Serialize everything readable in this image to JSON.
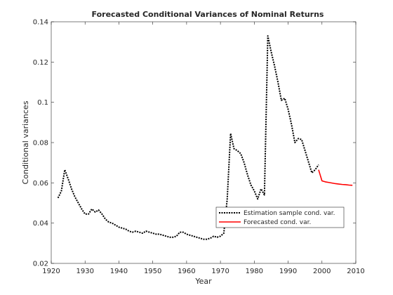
{
  "chart_data": {
    "type": "line",
    "title": "Forecasted Conditional Variances of Nominal Returns",
    "xlabel": "Year",
    "ylabel": "Conditional variances",
    "xlim": [
      1920,
      2010
    ],
    "ylim": [
      0.02,
      0.14
    ],
    "x_ticks": [
      1920,
      1930,
      1940,
      1950,
      1960,
      1970,
      1980,
      1990,
      2000,
      2010
    ],
    "y_ticks": [
      0.02,
      0.04,
      0.06,
      0.08,
      0.1,
      0.12,
      0.14
    ],
    "y_tick_labels": [
      "0.02",
      "0.04",
      "0.06",
      "0.08",
      "0.1",
      "0.12",
      "0.14"
    ],
    "grid": false,
    "legend_position": "lower-right",
    "series": [
      {
        "name": "Estimation sample cond. var.",
        "color": "#000000",
        "style": "dotted",
        "x": [
          1922,
          1923,
          1924,
          1925,
          1926,
          1927,
          1928,
          1929,
          1930,
          1931,
          1932,
          1933,
          1934,
          1935,
          1936,
          1937,
          1938,
          1939,
          1940,
          1941,
          1942,
          1943,
          1944,
          1945,
          1946,
          1947,
          1948,
          1949,
          1950,
          1951,
          1952,
          1953,
          1954,
          1955,
          1956,
          1957,
          1958,
          1959,
          1960,
          1961,
          1962,
          1963,
          1964,
          1965,
          1966,
          1967,
          1968,
          1969,
          1970,
          1971,
          1972,
          1973,
          1974,
          1975,
          1976,
          1977,
          1978,
          1979,
          1980,
          1981,
          1982,
          1983,
          1984,
          1985,
          1986,
          1987,
          1988,
          1989,
          1990,
          1991,
          1992,
          1993,
          1994,
          1995,
          1996,
          1997,
          1998,
          1999
        ],
        "y": [
          0.0525,
          0.056,
          0.0665,
          0.062,
          0.057,
          0.053,
          0.05,
          0.047,
          0.0445,
          0.0445,
          0.047,
          0.0455,
          0.0465,
          0.0445,
          0.042,
          0.0405,
          0.04,
          0.039,
          0.038,
          0.0375,
          0.037,
          0.036,
          0.0355,
          0.036,
          0.0355,
          0.035,
          0.036,
          0.0355,
          0.035,
          0.0345,
          0.0345,
          0.034,
          0.0335,
          0.033,
          0.033,
          0.0335,
          0.0355,
          0.0355,
          0.0345,
          0.034,
          0.0335,
          0.033,
          0.0325,
          0.032,
          0.032,
          0.0325,
          0.0335,
          0.033,
          0.0335,
          0.035,
          0.052,
          0.0845,
          0.077,
          0.076,
          0.0745,
          0.07,
          0.064,
          0.059,
          0.056,
          0.052,
          0.057,
          0.054,
          0.133,
          0.125,
          0.118,
          0.11,
          0.101,
          0.102,
          0.0965,
          0.089,
          0.08,
          0.082,
          0.0815,
          0.076,
          0.0705,
          0.065,
          0.0665,
          0.069
        ]
      },
      {
        "name": "Forecasted cond. var.",
        "color": "#ff0000",
        "style": "solid",
        "x": [
          1999,
          2000,
          2001,
          2002,
          2003,
          2004,
          2005,
          2006,
          2007,
          2008,
          2009
        ],
        "y": [
          0.0665,
          0.061,
          0.0605,
          0.0602,
          0.0599,
          0.0596,
          0.0594,
          0.0592,
          0.0591,
          0.0589,
          0.0588
        ]
      }
    ]
  }
}
